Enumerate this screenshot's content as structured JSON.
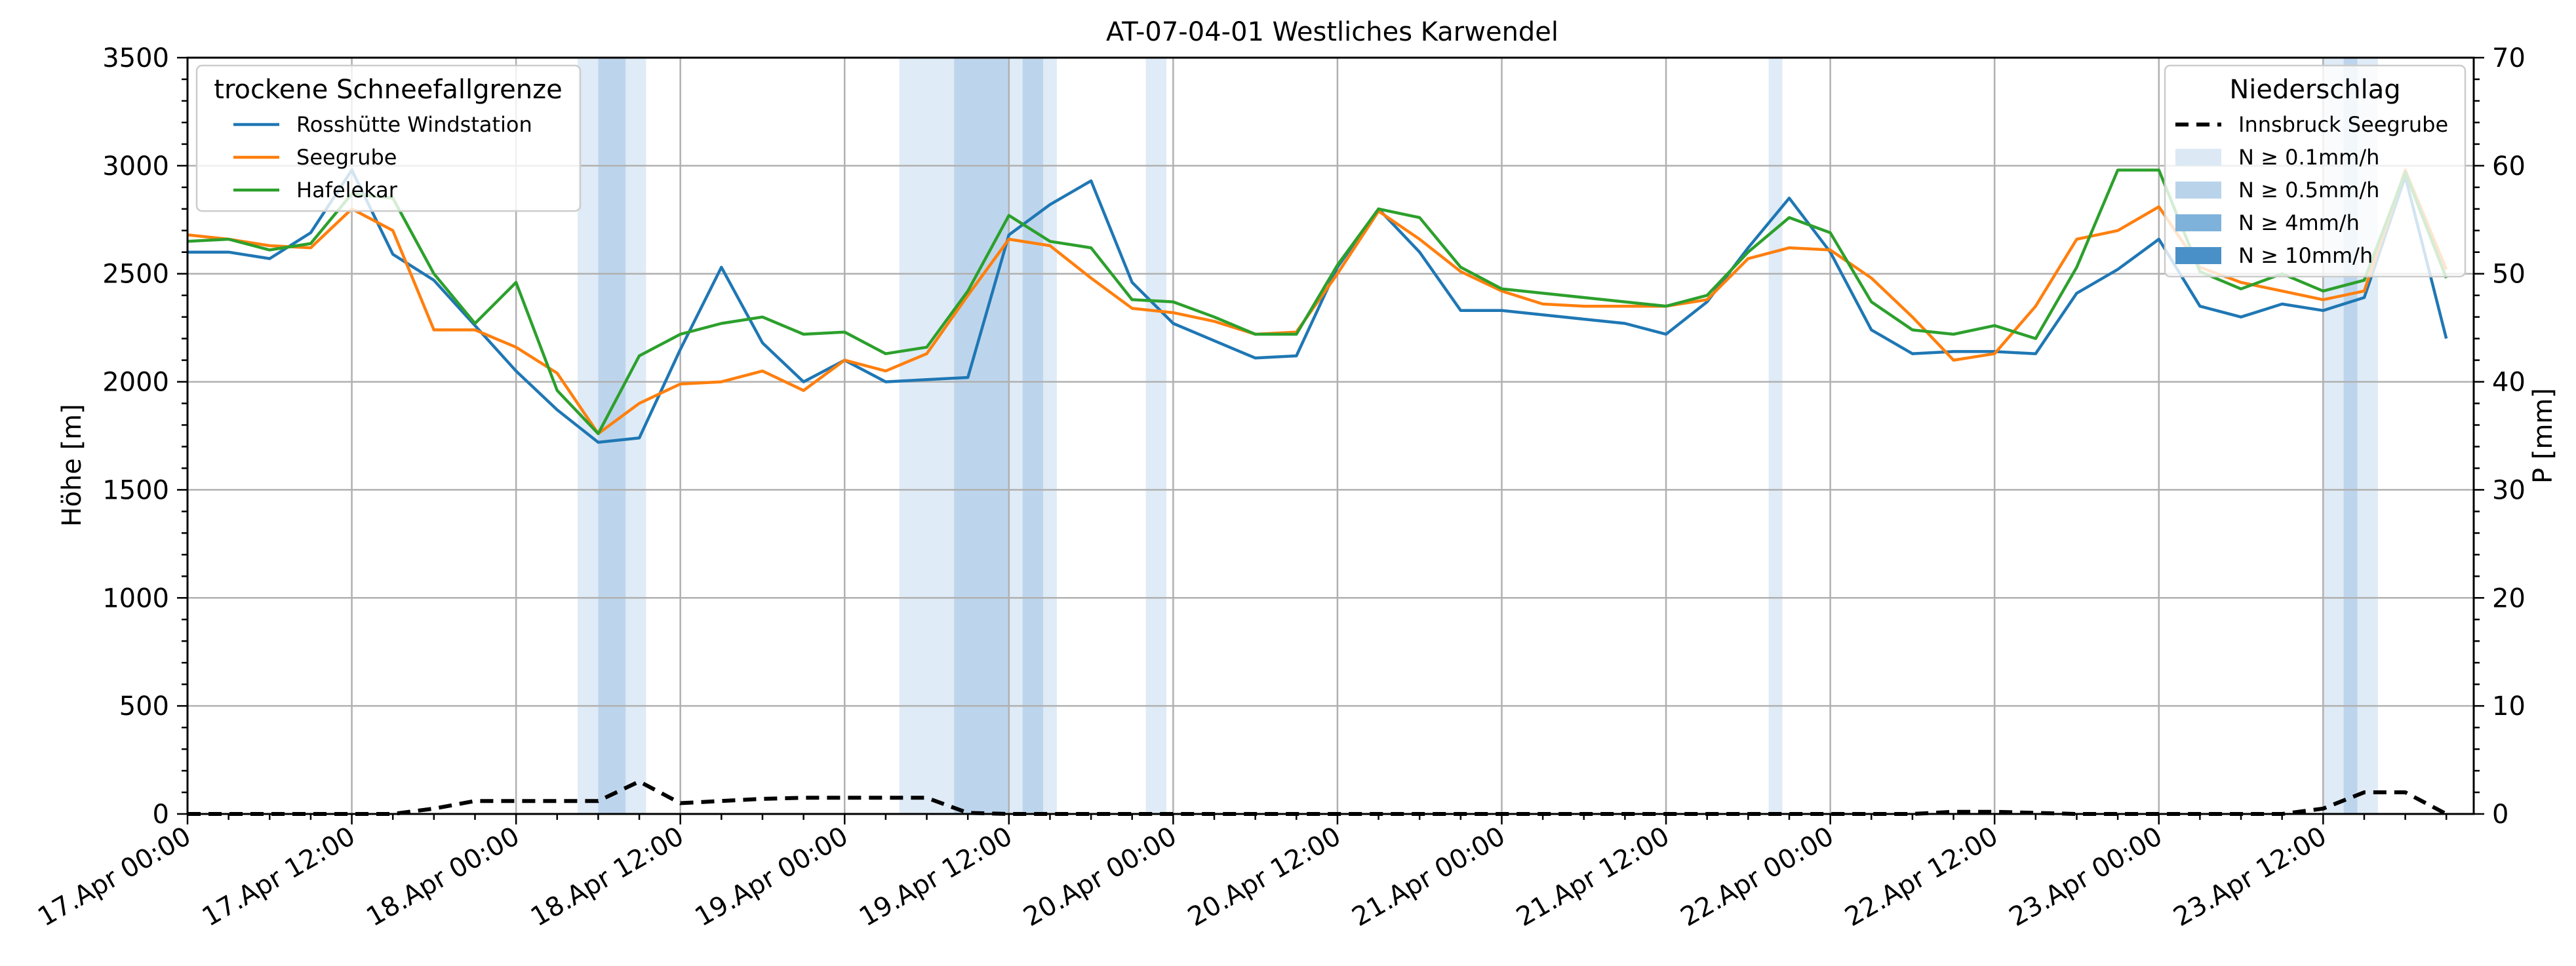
{
  "chart_data": {
    "type": "line",
    "title": "AT-07-04-01 Westliches Karwendel",
    "ylabel": "Höhe [m]",
    "y2label": "P [mm]",
    "xlim": [
      "17.Apr 00:00",
      "23.Apr 21:00"
    ],
    "ylim": [
      0,
      3500
    ],
    "y2lim": [
      0,
      70
    ],
    "grid": true,
    "x_ticks": [
      "17.Apr 00:00",
      "17.Apr 12:00",
      "18.Apr 00:00",
      "18.Apr 12:00",
      "19.Apr 00:00",
      "19.Apr 12:00",
      "20.Apr 00:00",
      "20.Apr 12:00",
      "21.Apr 00:00",
      "21.Apr 12:00",
      "22.Apr 00:00",
      "22.Apr 12:00",
      "23.Apr 00:00",
      "23.Apr 12:00"
    ],
    "y_ticks": [
      0,
      500,
      1000,
      1500,
      2000,
      2500,
      3000,
      3500
    ],
    "y2_ticks": [
      0,
      10,
      20,
      30,
      40,
      50,
      60,
      70
    ],
    "legend_left": {
      "title": "trockene Schneefallgrenze",
      "placement": "top-left"
    },
    "legend_right": {
      "title": "Niederschlag",
      "placement": "top-right",
      "entries": [
        {
          "label": "Innsbruck Seegrube",
          "kind": "line",
          "color": "#000000",
          "dash": true
        },
        {
          "label": "N ≥ 0.1mm/h",
          "kind": "patch",
          "color": "#dce9f5"
        },
        {
          "label": "N ≥ 0.5mm/h",
          "kind": "patch",
          "color": "#b9d3eb"
        },
        {
          "label": "N ≥ 4mm/h",
          "kind": "patch",
          "color": "#7fb2da"
        },
        {
          "label": "N ≥ 10mm/h",
          "kind": "patch",
          "color": "#4a90c8"
        }
      ]
    },
    "x_hours": [
      0,
      3,
      6,
      9,
      12,
      15,
      18,
      21,
      24,
      27,
      30,
      33,
      36,
      39,
      42,
      45,
      48,
      51,
      54,
      57,
      60,
      63,
      66,
      69,
      72,
      75,
      78,
      81,
      84,
      87,
      90,
      93,
      96,
      99,
      102,
      105,
      108,
      111,
      114,
      117,
      120,
      123,
      126,
      129,
      132,
      135,
      138,
      141,
      144,
      147,
      150,
      153,
      156,
      159,
      162,
      165
    ],
    "series": [
      {
        "name": "Rosshütte Windstation",
        "color": "#1f77b4",
        "values": [
          2600,
          2600,
          2570,
          2690,
          2980,
          2590,
          2470,
          2260,
          2050,
          1870,
          1720,
          1740,
          2150,
          2530,
          2180,
          2000,
          2100,
          2000,
          2010,
          2020,
          2680,
          2820,
          2930,
          2460,
          2270,
          2190,
          2110,
          2120,
          2530,
          2800,
          2600,
          2330,
          2330,
          2310,
          2290,
          2270,
          2220,
          2370,
          2620,
          2850,
          2600,
          2240,
          2130,
          2140,
          2140,
          2130,
          2410,
          2520,
          2660,
          2350,
          2300,
          2360,
          2330,
          2390,
          2950,
          2200
        ]
      },
      {
        "name": "Seegrube",
        "color": "#ff7f0e",
        "values": [
          2680,
          2660,
          2630,
          2620,
          2800,
          2700,
          2240,
          2240,
          2160,
          2040,
          1760,
          1900,
          1990,
          2000,
          2050,
          1960,
          2100,
          2050,
          2130,
          2400,
          2660,
          2630,
          2480,
          2340,
          2320,
          2280,
          2220,
          2230,
          2500,
          2790,
          2660,
          2510,
          2420,
          2360,
          2350,
          2350,
          2350,
          2380,
          2570,
          2620,
          2610,
          2480,
          2300,
          2100,
          2130,
          2350,
          2660,
          2700,
          2810,
          2530,
          2460,
          2420,
          2380,
          2420,
          2980,
          2520
        ]
      },
      {
        "name": "Hafelekar",
        "color": "#2ca02c",
        "values": [
          2650,
          2660,
          2610,
          2640,
          2870,
          2850,
          2500,
          2270,
          2460,
          1960,
          1760,
          2120,
          2220,
          2270,
          2300,
          2220,
          2230,
          2130,
          2160,
          2420,
          2770,
          2650,
          2620,
          2380,
          2370,
          2300,
          2220,
          2220,
          2540,
          2800,
          2760,
          2530,
          2430,
          2410,
          2390,
          2370,
          2350,
          2400,
          2600,
          2760,
          2690,
          2370,
          2240,
          2220,
          2260,
          2200,
          2530,
          2980,
          2980,
          2510,
          2430,
          2500,
          2420,
          2470,
          2970,
          2480
        ]
      },
      {
        "name": "Innsbruck Seegrube",
        "color": "#000000",
        "axis": "right",
        "dash": true,
        "values": [
          0,
          0,
          0,
          0,
          0,
          0,
          0.5,
          1.2,
          1.2,
          1.2,
          1.2,
          3,
          1,
          1.2,
          1.4,
          1.5,
          1.5,
          1.5,
          1.5,
          0.1,
          0,
          0,
          0,
          0,
          0,
          0,
          0,
          0,
          0,
          0,
          0,
          0,
          0,
          0,
          0,
          0,
          0,
          0,
          0,
          0,
          0,
          0,
          0,
          0.2,
          0.2,
          0.1,
          0,
          0,
          0,
          0,
          0,
          0,
          0.5,
          2,
          2,
          0
        ]
      }
    ],
    "precip_bands": [
      {
        "start": 28.5,
        "end": 33.5,
        "level": 1
      },
      {
        "start": 30.0,
        "end": 32.0,
        "level": 2
      },
      {
        "start": 52.0,
        "end": 63.5,
        "level": 1
      },
      {
        "start": 56.0,
        "end": 60.0,
        "level": 2
      },
      {
        "start": 61.0,
        "end": 62.5,
        "level": 2
      },
      {
        "start": 70.0,
        "end": 71.5,
        "level": 1
      },
      {
        "start": 115.5,
        "end": 116.5,
        "level": 1
      },
      {
        "start": 156.0,
        "end": 160.0,
        "level": 1
      },
      {
        "start": 157.5,
        "end": 158.5,
        "level": 2
      }
    ]
  }
}
